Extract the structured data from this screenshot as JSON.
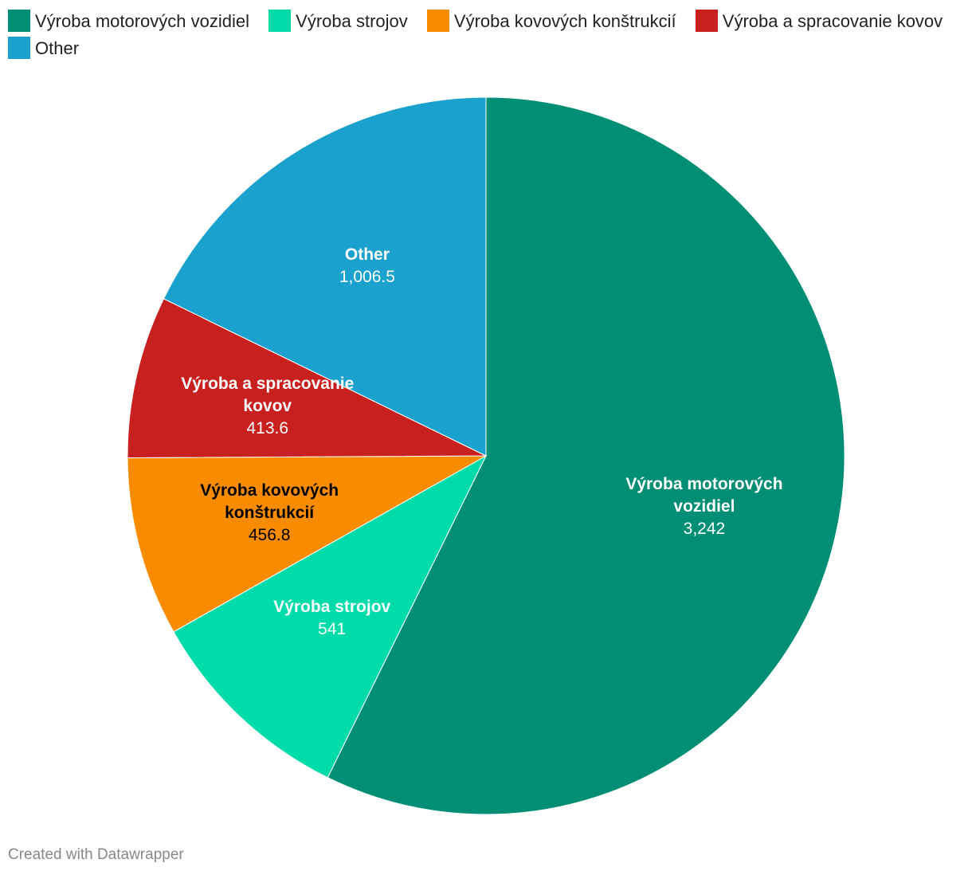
{
  "chart_data": {
    "type": "pie",
    "categories": [
      "Výroba motorových vozidiel",
      "Výroba strojov",
      "Výroba kovových konštrukcií",
      "Výroba a spracovanie kovov",
      "Other"
    ],
    "values": [
      3242,
      541,
      456.8,
      413.6,
      1006.5
    ],
    "value_labels": [
      "3,242",
      "541",
      "456.8",
      "413.6",
      "1,006.5"
    ],
    "colors": [
      "#008f74",
      "#00dca9",
      "#f98b00",
      "#c81f1f",
      "#1aa1cd"
    ],
    "legend": "top",
    "credit": "Created with Datawrapper"
  }
}
